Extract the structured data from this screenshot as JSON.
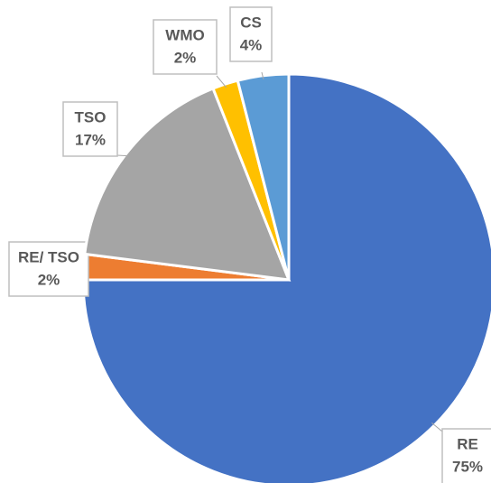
{
  "chart_data": {
    "type": "pie",
    "categories": [
      "RE",
      "RE/ TSO",
      "TSO",
      "WMO",
      "CS"
    ],
    "values": [
      75,
      2,
      17,
      2,
      4
    ],
    "value_labels": [
      "75%",
      "2%",
      "17%",
      "2%",
      "4%"
    ],
    "colors": [
      "#4472c4",
      "#ed7d31",
      "#a5a5a5",
      "#ffc000",
      "#5b9bd5"
    ]
  }
}
